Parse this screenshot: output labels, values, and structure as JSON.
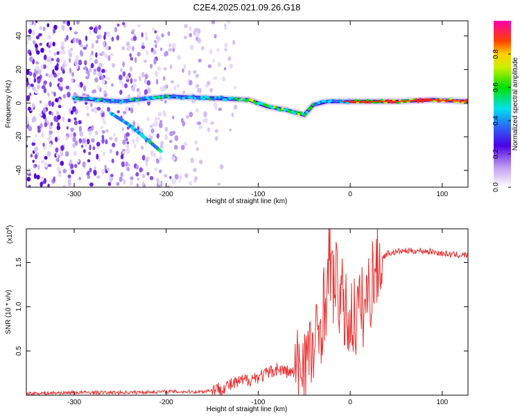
{
  "chart_data": [
    {
      "type": "heatmap",
      "title": "C2E4.2025.021.09.26.G18",
      "xlabel": "Height of straight line (km)",
      "ylabel": "Frequency (Hz)",
      "xlim": [
        -352,
        128
      ],
      "ylim": [
        -50,
        49
      ],
      "xticks": [
        -300,
        -200,
        -100,
        0,
        100
      ],
      "yticks": [
        -40,
        -20,
        0,
        20,
        40
      ],
      "colorbar": {
        "label": "Normalized spectral amplitude",
        "range": [
          0,
          1
        ],
        "ticks": [
          "0.0",
          "0.2",
          "0.4",
          "0.6",
          "0.8"
        ],
        "colormap": "rainbow (white-purple-blue-cyan-green-yellow-red-magenta)"
      },
      "ridges": [
        {
          "description": "main frequency track",
          "points": [
            [
              -300,
              3
            ],
            [
              -250,
              1
            ],
            [
              -200,
              4
            ],
            [
              -150,
              3
            ],
            [
              -110,
              2
            ],
            [
              -90,
              -2
            ],
            [
              -70,
              -4
            ],
            [
              -50,
              -7
            ],
            [
              -40,
              -1
            ],
            [
              -25,
              1
            ],
            [
              0,
              1
            ],
            [
              50,
              1
            ],
            [
              90,
              2
            ],
            [
              128,
              1
            ]
          ]
        },
        {
          "description": "secondary descending track",
          "points": [
            [
              -260,
              -6
            ],
            [
              -240,
              -13
            ],
            [
              -220,
              -22
            ],
            [
              -205,
              -29
            ]
          ]
        }
      ]
    },
    {
      "type": "line",
      "title": "",
      "xlabel": "Height of straight line (km)",
      "ylabel": "SNR (10 * v/v)",
      "y_multiplier": "(x10",
      "y_multiplier_exp": "4",
      "y_multiplier_close": ")",
      "xlim": [
        -352,
        128
      ],
      "ylim": [
        0,
        18800
      ],
      "xticks": [
        -300,
        -200,
        -100,
        0,
        100
      ],
      "yticks": [
        "0.5",
        "1.0",
        "1.5"
      ],
      "series": [
        {
          "color": "#e83030",
          "x": [
            -352,
            -300,
            -250,
            -200,
            -160,
            -140,
            -120,
            -100,
            -90,
            -80,
            -70,
            -60,
            -50,
            -45,
            -40,
            -35,
            -30,
            -25,
            -22,
            -20,
            -15,
            -10,
            -5,
            0,
            5,
            10,
            15,
            20,
            25,
            30,
            35,
            40,
            50,
            60,
            80,
            90,
            100,
            110,
            128
          ],
          "y": [
            200,
            300,
            300,
            400,
            400,
            800,
            1500,
            2100,
            2400,
            3000,
            2700,
            2500,
            4200,
            4400,
            4800,
            6500,
            9500,
            12000,
            16000,
            13000,
            12500,
            11000,
            9000,
            8500,
            9000,
            9500,
            10000,
            11500,
            13500,
            15000,
            15500,
            16000,
            16200,
            16300,
            16300,
            16200,
            16000,
            15900,
            15800
          ]
        }
      ]
    }
  ]
}
